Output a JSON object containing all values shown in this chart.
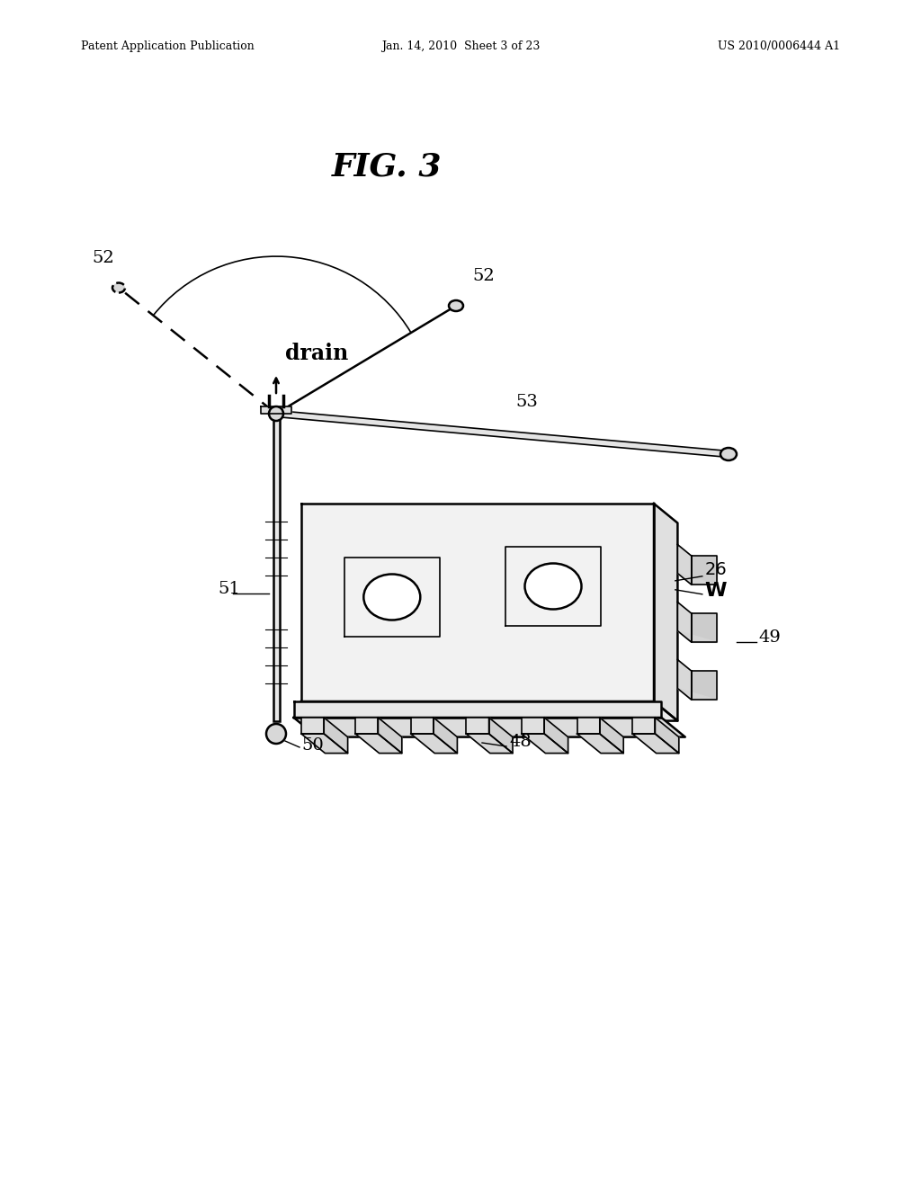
{
  "title": "FIG. 3",
  "header_left": "Patent Application Publication",
  "header_center": "Jan. 14, 2010  Sheet 3 of 23",
  "header_right": "US 2010/0006444 A1",
  "bg_color": "#ffffff",
  "line_color": "#000000"
}
